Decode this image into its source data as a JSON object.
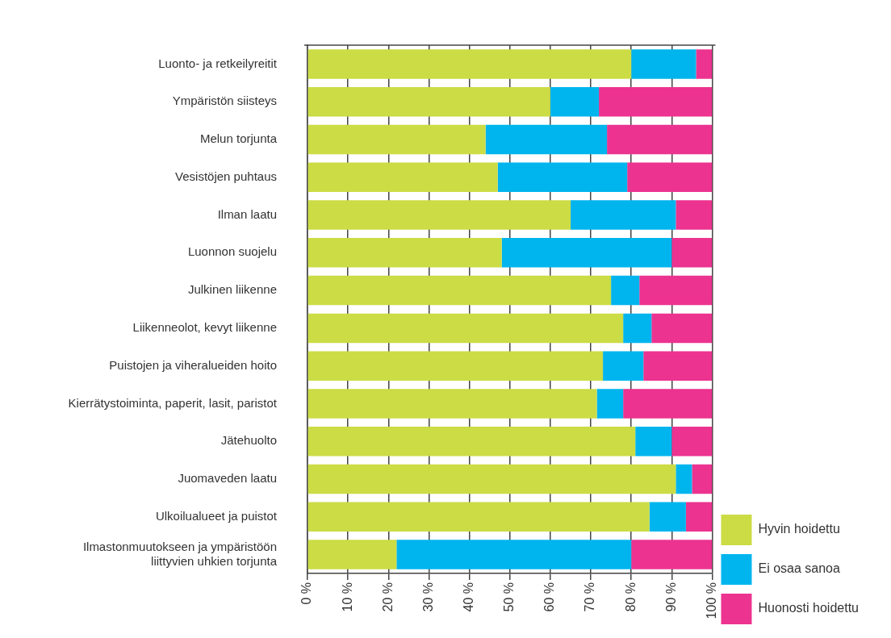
{
  "chart_data": {
    "type": "bar",
    "orientation": "horizontal",
    "stacked": true,
    "categories": [
      "Luonto- ja retkeilyreitit",
      "Ympäristön siisteys",
      "Melun torjunta",
      "Vesistöjen puhtaus",
      "Ilman laatu",
      "Luonnon suojelu",
      "Julkinen liikenne",
      "Liikenneolot, kevyt liikenne",
      "Puistojen ja viheralueiden hoito",
      "Kierrätystoiminta, paperit, lasit, paristot",
      "Jätehuolto",
      "Juomaveden laatu",
      "Ulkoilualueet ja puistot",
      "Ilmastonmuutokseen ja ympäristöön liittyvien uhkien torjunta"
    ],
    "series": [
      {
        "name": "Hyvin hoidettu",
        "color": "#cbdc45",
        "values": [
          80,
          60,
          44,
          47,
          65,
          48,
          75,
          78,
          73,
          71.5,
          81,
          91,
          84.5,
          22
        ]
      },
      {
        "name": "Ei osaa sanoa",
        "color": "#00b5ee",
        "values": [
          16,
          12,
          30,
          32,
          26,
          42,
          7,
          7,
          10,
          6.5,
          9,
          4,
          9,
          58
        ]
      },
      {
        "name": "Huonosti hoidettu",
        "color": "#ec3390",
        "values": [
          4,
          28,
          26,
          21,
          9,
          10,
          18,
          15,
          17,
          22,
          10,
          5,
          6.5,
          20
        ]
      }
    ],
    "xlim": [
      0,
      100
    ],
    "xticks": [
      {
        "value": 0,
        "label": "0 %"
      },
      {
        "value": 10,
        "label": "10 %"
      },
      {
        "value": 20,
        "label": "20 %"
      },
      {
        "value": 30,
        "label": "30 %"
      },
      {
        "value": 40,
        "label": "40 %"
      },
      {
        "value": 50,
        "label": "50 %"
      },
      {
        "value": 60,
        "label": "60 %"
      },
      {
        "value": 70,
        "label": "70 %"
      },
      {
        "value": 80,
        "label": "80 %"
      },
      {
        "value": 90,
        "label": "90 %"
      },
      {
        "value": 100,
        "label": "100 %"
      }
    ],
    "grid": "x",
    "legend": "bottom right"
  }
}
